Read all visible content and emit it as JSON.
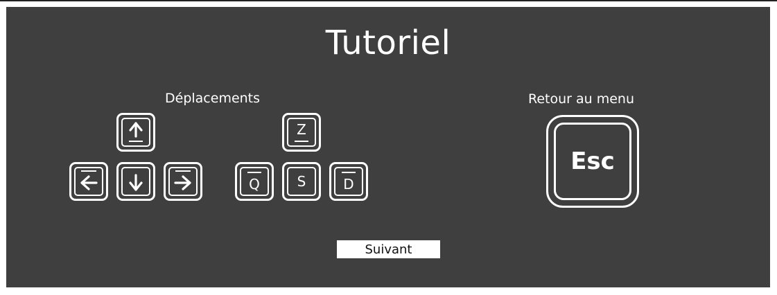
{
  "title": "Tutoriel",
  "movement": {
    "label": "Déplacements",
    "arrow_keys": [
      "up-arrow",
      "left-arrow",
      "down-arrow",
      "right-arrow"
    ],
    "letter_keys": {
      "up": "Z",
      "left": "Q",
      "down": "S",
      "right": "D"
    }
  },
  "menu": {
    "label": "Retour au menu",
    "key": "Esc"
  },
  "next_button": "Suivant",
  "colors": {
    "background": "#3f3f3f",
    "foreground": "#ffffff",
    "button_bg": "#ffffff",
    "button_text": "#111111"
  }
}
